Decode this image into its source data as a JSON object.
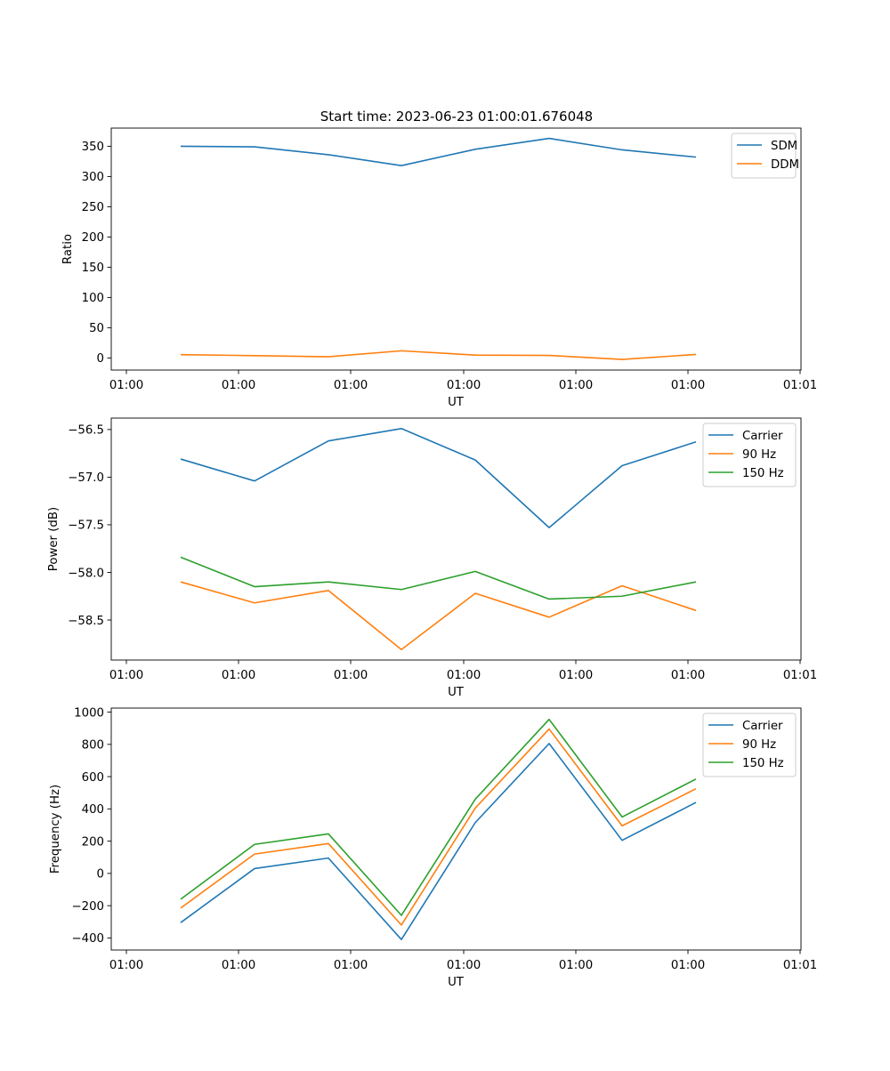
{
  "figure": {
    "title": "Start time: 2023-06-23 01:00:01.676048"
  },
  "chart_data": [
    {
      "type": "line",
      "title": "Start time: 2023-06-23 01:00:01.676048",
      "xlabel": "UT",
      "ylabel": "Ratio",
      "x_tick_labels": [
        "01:00",
        "01:00",
        "01:00",
        "01:00",
        "01:00",
        "01:00",
        "01:01"
      ],
      "y_ticks": [
        0,
        50,
        100,
        150,
        200,
        250,
        300,
        350
      ],
      "ylim": [
        -20,
        380
      ],
      "x": [
        1,
        2,
        3,
        4,
        5,
        6,
        7,
        8
      ],
      "series": [
        {
          "name": "SDM",
          "color": "#1f77b4",
          "values": [
            350,
            349,
            336,
            318,
            345,
            363,
            344,
            332
          ]
        },
        {
          "name": "DDM",
          "color": "#ff7f0e",
          "values": [
            5.5,
            3.8,
            2.0,
            11.8,
            4.8,
            4.2,
            -2.5,
            5.8
          ]
        }
      ],
      "legend": "top-right",
      "grid": false
    },
    {
      "type": "line",
      "xlabel": "UT",
      "ylabel": "Power (dB)",
      "x_tick_labels": [
        "01:00",
        "01:00",
        "01:00",
        "01:00",
        "01:00",
        "01:00",
        "01:01"
      ],
      "y_ticks": [
        -58.5,
        -58.0,
        -57.5,
        -57.0,
        -56.5
      ],
      "y_tick_labels": [
        "−58.5",
        "−58.0",
        "−57.5",
        "−57.0",
        "−56.5"
      ],
      "ylim": [
        -58.92,
        -56.38
      ],
      "x": [
        1,
        2,
        3,
        4,
        5,
        6,
        7,
        8
      ],
      "series": [
        {
          "name": "Carrier",
          "color": "#1f77b4",
          "values": [
            -56.81,
            -57.04,
            -56.62,
            -56.49,
            -56.82,
            -57.53,
            -56.88,
            -56.63
          ]
        },
        {
          "name": "90 Hz",
          "color": "#ff7f0e",
          "values": [
            -58.1,
            -58.32,
            -58.19,
            -58.81,
            -58.22,
            -58.47,
            -58.14,
            -58.4
          ]
        },
        {
          "name": "150 Hz",
          "color": "#2ca02c",
          "values": [
            -57.84,
            -58.15,
            -58.1,
            -58.18,
            -57.99,
            -58.28,
            -58.25,
            -58.1
          ]
        }
      ],
      "legend": "top-right",
      "grid": false
    },
    {
      "type": "line",
      "xlabel": "UT",
      "ylabel": "Frequency (Hz)",
      "x_tick_labels": [
        "01:00",
        "01:00",
        "01:00",
        "01:00",
        "01:00",
        "01:00",
        "01:01"
      ],
      "y_ticks": [
        -400,
        -200,
        0,
        200,
        400,
        600,
        800,
        1000
      ],
      "y_tick_labels": [
        "−400",
        "−200",
        "0",
        "200",
        "400",
        "600",
        "800",
        "1000"
      ],
      "ylim": [
        -475,
        1025
      ],
      "x": [
        1,
        2,
        3,
        4,
        5,
        6,
        7,
        8
      ],
      "series": [
        {
          "name": "Carrier",
          "color": "#1f77b4",
          "values": [
            -305,
            30,
            95,
            -410,
            315,
            805,
            205,
            440
          ]
        },
        {
          "name": "90 Hz",
          "color": "#ff7f0e",
          "values": [
            -215,
            120,
            185,
            -320,
            405,
            895,
            295,
            525
          ]
        },
        {
          "name": "150 Hz",
          "color": "#2ca02c",
          "values": [
            -160,
            180,
            245,
            -260,
            460,
            955,
            350,
            585
          ]
        }
      ],
      "legend": "top-right",
      "grid": false
    }
  ]
}
